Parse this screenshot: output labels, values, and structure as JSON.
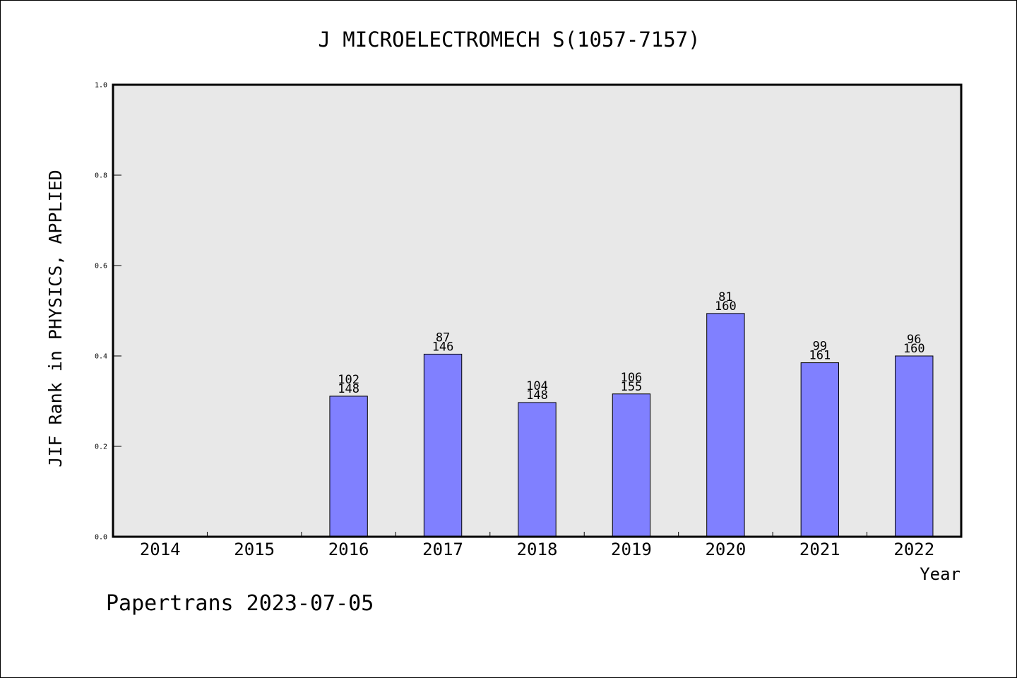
{
  "chart_data": {
    "type": "bar",
    "title": "J MICROELECTROMECH S(1057-7157)",
    "xlabel": "Year",
    "ylabel": "JIF Rank in PHYSICS, APPLIED",
    "categories": [
      "2014",
      "2015",
      "2016",
      "2017",
      "2018",
      "2019",
      "2020",
      "2021",
      "2022"
    ],
    "values": [
      null,
      null,
      0.311,
      0.404,
      0.297,
      0.316,
      0.494,
      0.385,
      0.4
    ],
    "bar_labels": [
      null,
      null,
      {
        "rank": "102",
        "total": "148"
      },
      {
        "rank": "87",
        "total": "146"
      },
      {
        "rank": "104",
        "total": "148"
      },
      {
        "rank": "106",
        "total": "155"
      },
      {
        "rank": "81",
        "total": "160"
      },
      {
        "rank": "99",
        "total": "161"
      },
      {
        "rank": "96",
        "total": "160"
      }
    ],
    "ylim": [
      0,
      1
    ],
    "yticks": [
      "0.0",
      "0.2",
      "0.4",
      "0.6",
      "0.8",
      "1.0"
    ],
    "grid": false,
    "colors": {
      "bar": "#8080ff",
      "bar_edge": "#000000",
      "plot_background": "#e8e8e8"
    }
  },
  "footer": {
    "text": "Papertrans 2023-07-05"
  }
}
